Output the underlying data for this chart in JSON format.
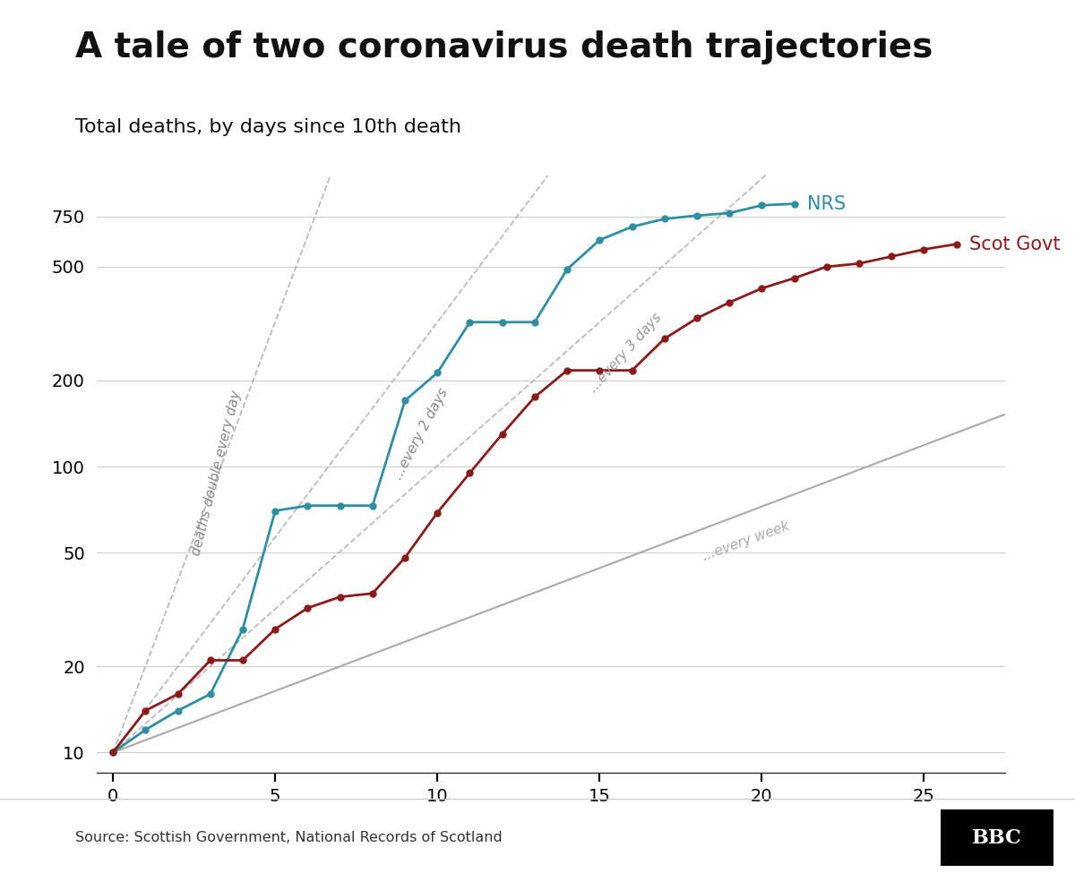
{
  "title": "A tale of two coronavirus death trajectories",
  "subtitle": "Total deaths, by days since 10th death",
  "source": "Source: Scottish Government, National Records of Scotland",
  "nrs_x": [
    0,
    1,
    2,
    3,
    4,
    5,
    6,
    7,
    8,
    9,
    10,
    11,
    12,
    13,
    14,
    15,
    16,
    17,
    18,
    19,
    20,
    21
  ],
  "nrs_y": [
    10,
    12,
    14,
    16,
    27,
    70,
    73,
    73,
    73,
    170,
    213,
    320,
    320,
    320,
    490,
    620,
    690,
    735,
    755,
    770,
    820,
    830
  ],
  "scot_x": [
    0,
    1,
    2,
    3,
    4,
    5,
    6,
    7,
    8,
    9,
    10,
    11,
    12,
    13,
    14,
    15,
    16,
    17,
    18,
    19,
    20,
    21,
    22,
    23,
    24,
    25,
    26
  ],
  "scot_y": [
    10,
    14,
    16,
    21,
    21,
    27,
    32,
    35,
    36,
    48,
    69,
    95,
    130,
    175,
    217,
    217,
    217,
    280,
    330,
    375,
    420,
    456,
    500,
    513,
    543,
    575,
    600
  ],
  "nrs_color": "#2e8fa3",
  "scot_color": "#8b1a1a",
  "ref_solid_color": "#aaaaaa",
  "ref_dash_color": "#bbbbbb",
  "background_color": "#ffffff",
  "xlim": [
    -0.5,
    27.5
  ],
  "ylim_log": [
    8.5,
    1050
  ],
  "yticks": [
    10,
    20,
    50,
    100,
    200,
    500,
    750
  ],
  "xticks": [
    0,
    5,
    10,
    15,
    20,
    25
  ],
  "title_fontsize": 28,
  "subtitle_fontsize": 16,
  "tick_fontsize": 14,
  "annotation_fontsize": 11
}
